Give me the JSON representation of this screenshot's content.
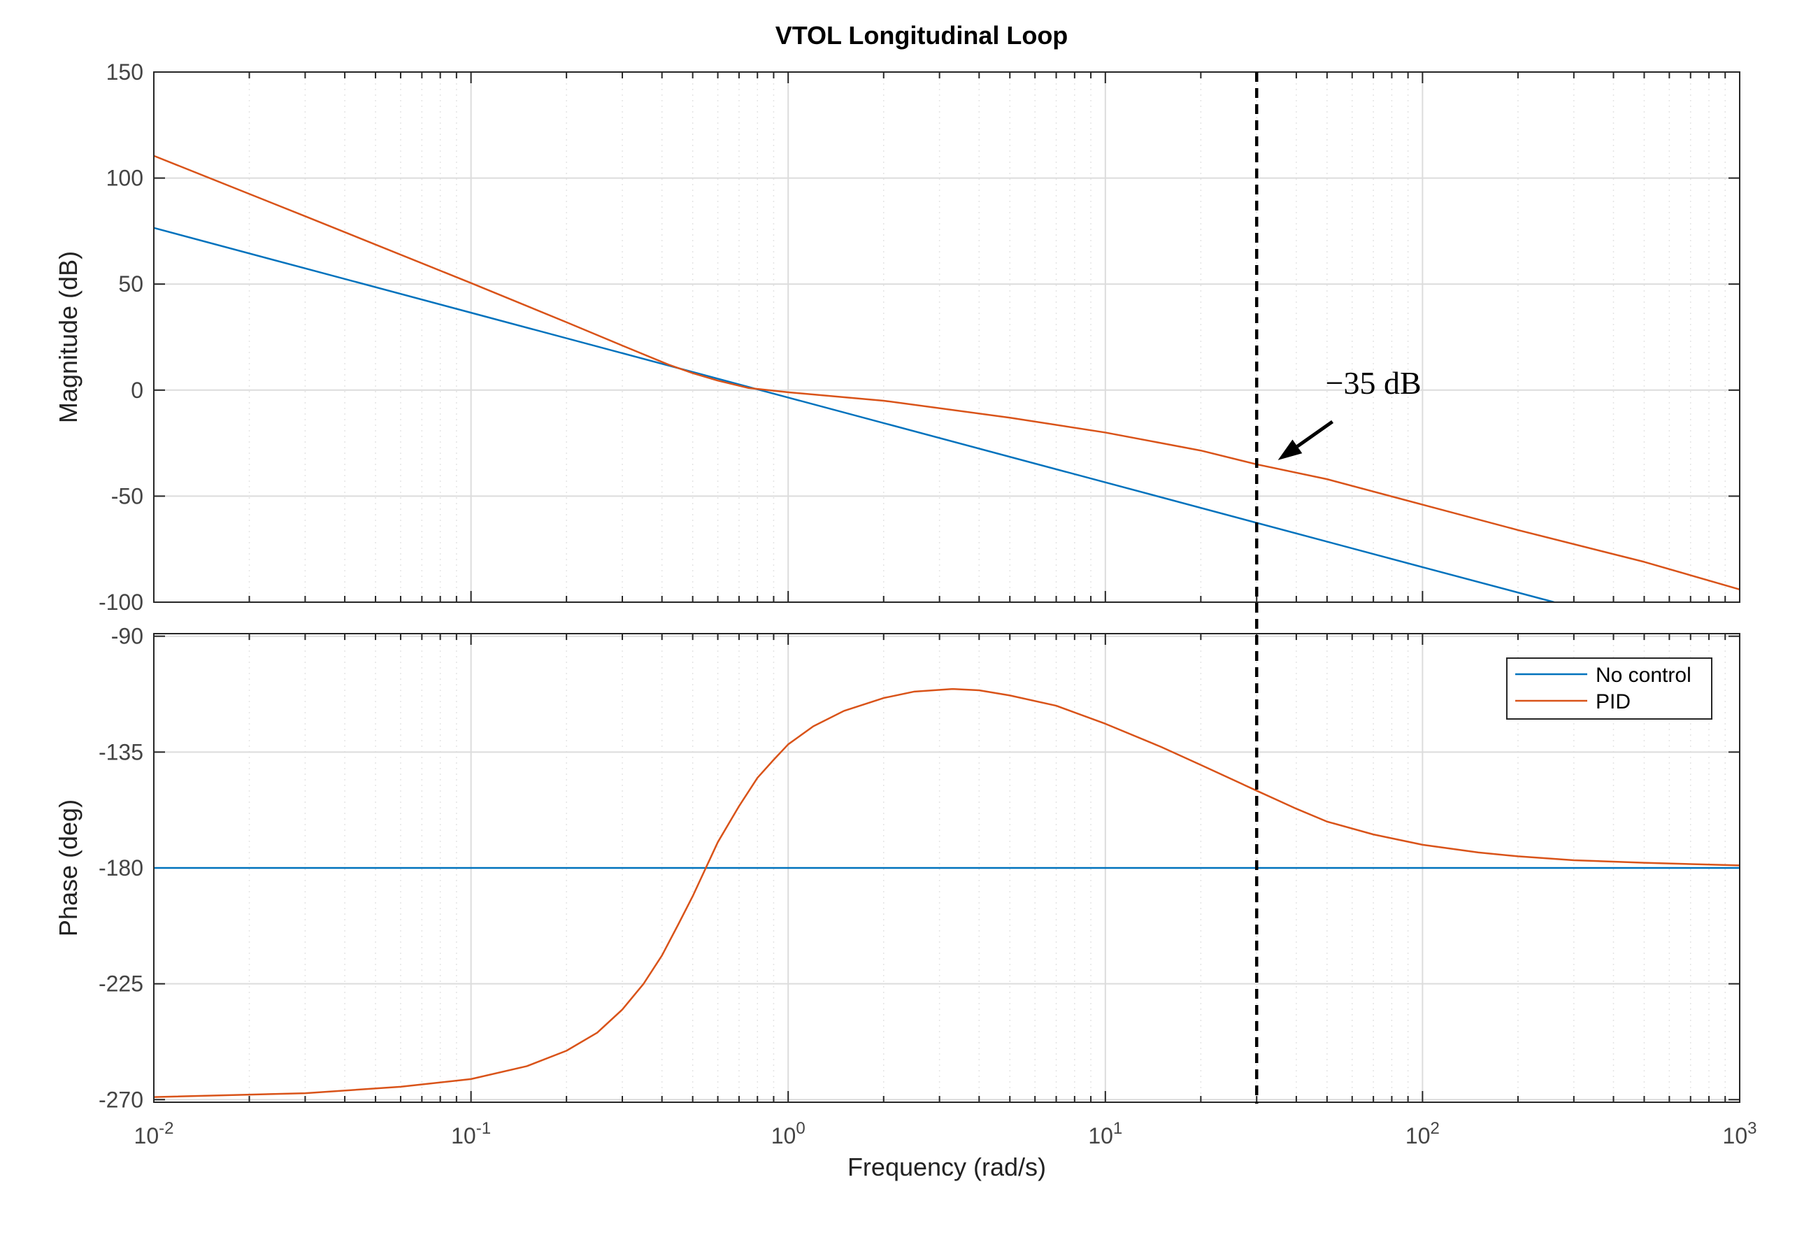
{
  "chart_data": {
    "type": "line",
    "title": "VTOL Longitudinal Loop",
    "xlabel": "Frequency  (rad/s)",
    "xscale": "log",
    "xlim": [
      0.01,
      1000
    ],
    "x_tick_labels": [
      {
        "base": "10",
        "exp": "-2"
      },
      {
        "base": "10",
        "exp": "-1"
      },
      {
        "base": "10",
        "exp": "0"
      },
      {
        "base": "10",
        "exp": "1"
      },
      {
        "base": "10",
        "exp": "2"
      },
      {
        "base": "10",
        "exp": "3"
      }
    ],
    "grid": true,
    "panels": [
      {
        "name": "magnitude",
        "ylabel": "Magnitude (dB)",
        "ylim": [
          -100,
          150
        ],
        "yticks": [
          150,
          100,
          50,
          0,
          -50,
          -100
        ],
        "ytick_labels": [
          "150",
          "100",
          "50",
          "0",
          "-50",
          "-100"
        ],
        "series": [
          {
            "name": "No control",
            "color": "#0072BD",
            "x": [
              0.01,
              0.1,
              1,
              10,
              100,
              260
            ],
            "y": [
              76.5,
              36.5,
              -3.5,
              -43.5,
              -83.5,
              -100
            ]
          },
          {
            "name": "PID",
            "color": "#D95319",
            "x": [
              0.01,
              0.03,
              0.1,
              0.2,
              0.3,
              0.42,
              0.5,
              0.6,
              0.75,
              1,
              2,
              5,
              10,
              20,
              30,
              50,
              100,
              200,
              500,
              1000
            ],
            "y": [
              110.5,
              82,
              50.5,
              32,
              21,
              12,
              8,
              4.5,
              1,
              -1,
              -5,
              -13,
              -20,
              -28.5,
              -35,
              -42,
              -54,
              -66,
              -81,
              -94
            ]
          }
        ]
      },
      {
        "name": "phase",
        "ylabel": "Phase (deg)",
        "ylim": [
          -271,
          -89
        ],
        "yticks": [
          -90,
          -135,
          -180,
          -225,
          -270
        ],
        "ytick_labels": [
          "-90",
          "-135",
          "-180",
          "-225",
          "-270"
        ],
        "series": [
          {
            "name": "No control",
            "color": "#0072BD",
            "x": [
              0.01,
              1000
            ],
            "y": [
              -180,
              -180
            ]
          },
          {
            "name": "PID",
            "color": "#D95319",
            "x": [
              0.01,
              0.03,
              0.06,
              0.1,
              0.15,
              0.2,
              0.25,
              0.3,
              0.35,
              0.4,
              0.45,
              0.5,
              0.55,
              0.6,
              0.7,
              0.8,
              0.9,
              1.0,
              1.2,
              1.5,
              2,
              2.5,
              3.3,
              4,
              5,
              7,
              10,
              15,
              20,
              30,
              40,
              50,
              70,
              100,
              150,
              200,
              300,
              500,
              700,
              1000
            ],
            "y": [
              -269,
              -267.5,
              -265,
              -262,
              -257,
              -251,
              -244,
              -235,
              -225,
              -214,
              -202,
              -191,
              -180,
              -170,
              -156,
              -145,
              -138,
              -132,
              -125,
              -119,
              -114,
              -111.5,
              -110.5,
              -111,
              -113,
              -117,
              -124,
              -133,
              -140,
              -150,
              -157,
              -162,
              -167,
              -171,
              -174,
              -175.5,
              -177,
              -178,
              -178.5,
              -179
            ]
          }
        ]
      }
    ],
    "vertical_marker": {
      "x": 30,
      "style": "dashed",
      "color": "#000000"
    },
    "annotation": {
      "text": "−35 dB",
      "arrow_to": {
        "x": 35,
        "y": -33
      }
    },
    "legend": {
      "location": "top-right",
      "panel": "phase",
      "entries": [
        "No control",
        "PID"
      ]
    }
  }
}
